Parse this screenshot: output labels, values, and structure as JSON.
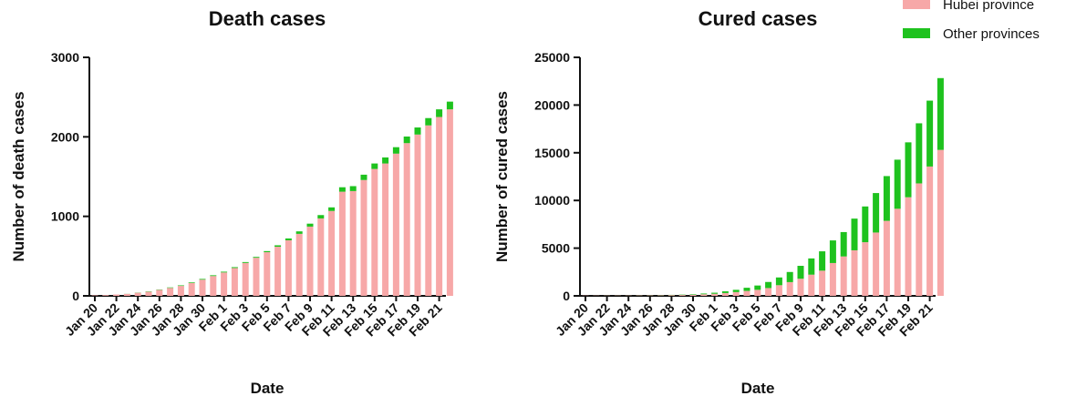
{
  "colors": {
    "hubei": "#f7a8a8",
    "other": "#1ec21e"
  },
  "legend": [
    {
      "label": "Hubei province",
      "color": "#f7a8a8"
    },
    {
      "label": "Other provinces",
      "color": "#1ec21e"
    }
  ],
  "chart_data": [
    {
      "type": "bar",
      "stacked": true,
      "title": "Death cases",
      "xlabel": "Date",
      "ylabel": "Number of death cases",
      "ylim": [
        0,
        3000
      ],
      "yticks": [
        0,
        1000,
        2000,
        3000
      ],
      "categories": [
        "Jan 20",
        "Jan 21",
        "Jan 22",
        "Jan 23",
        "Jan 24",
        "Jan 25",
        "Jan 26",
        "Jan 27",
        "Jan 28",
        "Jan 29",
        "Jan 30",
        "Jan 31",
        "Feb 1",
        "Feb 2",
        "Feb 3",
        "Feb 4",
        "Feb 5",
        "Feb 6",
        "Feb 7",
        "Feb 8",
        "Feb 9",
        "Feb 10",
        "Feb 11",
        "Feb 12",
        "Feb 13",
        "Feb 14",
        "Feb 15",
        "Feb 16",
        "Feb 17",
        "Feb 18",
        "Feb 19",
        "Feb 20",
        "Feb 21",
        "Feb 22"
      ],
      "tick_labels": [
        "Jan 20",
        "Jan 22",
        "Jan 24",
        "Jan 26",
        "Jan 28",
        "Jan 30",
        "Feb 1",
        "Feb 3",
        "Feb 5",
        "Feb 7",
        "Feb 9",
        "Feb 11",
        "Feb 13",
        "Feb 15",
        "Feb 17",
        "Feb 19",
        "Feb 21"
      ],
      "series": [
        {
          "name": "Hubei province",
          "values": [
            6,
            9,
            17,
            24,
            39,
            52,
            76,
            100,
            125,
            162,
            204,
            249,
            294,
            350,
            414,
            479,
            549,
            618,
            699,
            780,
            871,
            974,
            1068,
            1310,
            1318,
            1457,
            1596,
            1665,
            1789,
            1921,
            2029,
            2144,
            2250,
            2346
          ]
        },
        {
          "name": "Other provinces",
          "values": [
            0,
            0,
            0,
            1,
            2,
            4,
            4,
            6,
            7,
            8,
            9,
            10,
            10,
            11,
            11,
            11,
            14,
            18,
            23,
            31,
            37,
            42,
            45,
            56,
            62,
            67,
            69,
            76,
            81,
            83,
            89,
            92,
            96,
            97
          ]
        }
      ]
    },
    {
      "type": "bar",
      "stacked": true,
      "title": "Cured cases",
      "xlabel": "Date",
      "ylabel": "Number of cured cases",
      "ylim": [
        0,
        25000
      ],
      "yticks": [
        0,
        5000,
        10000,
        15000,
        20000,
        25000
      ],
      "categories": [
        "Jan 20",
        "Jan 21",
        "Jan 22",
        "Jan 23",
        "Jan 24",
        "Jan 25",
        "Jan 26",
        "Jan 27",
        "Jan 28",
        "Jan 29",
        "Jan 30",
        "Jan 31",
        "Feb 1",
        "Feb 2",
        "Feb 3",
        "Feb 4",
        "Feb 5",
        "Feb 6",
        "Feb 7",
        "Feb 8",
        "Feb 9",
        "Feb 10",
        "Feb 11",
        "Feb 12",
        "Feb 13",
        "Feb 14",
        "Feb 15",
        "Feb 16",
        "Feb 17",
        "Feb 18",
        "Feb 19",
        "Feb 20",
        "Feb 21",
        "Feb 22"
      ],
      "tick_labels": [
        "Jan 20",
        "Jan 22",
        "Jan 24",
        "Jan 26",
        "Jan 28",
        "Jan 30",
        "Feb 1",
        "Feb 3",
        "Feb 5",
        "Feb 7",
        "Feb 9",
        "Feb 11",
        "Feb 13",
        "Feb 15",
        "Feb 17",
        "Feb 19",
        "Feb 21"
      ],
      "series": [
        {
          "name": "Hubei province",
          "values": [
            25,
            25,
            28,
            31,
            32,
            42,
            44,
            47,
            80,
            90,
            116,
            166,
            215,
            295,
            396,
            520,
            633,
            817,
            1115,
            1439,
            1795,
            2222,
            2639,
            3441,
            4131,
            4774,
            5623,
            6639,
            7862,
            9128,
            10337,
            11788,
            13557,
            15299
          ]
        },
        {
          "name": "Other provinces",
          "values": [
            0,
            3,
            6,
            6,
            6,
            9,
            12,
            16,
            23,
            37,
            55,
            77,
            113,
            180,
            236,
            328,
            451,
            637,
            813,
            1062,
            1352,
            1701,
            2029,
            2369,
            2555,
            3322,
            3747,
            4136,
            4692,
            5146,
            5754,
            6300,
            6906,
            7526
          ]
        }
      ]
    }
  ]
}
